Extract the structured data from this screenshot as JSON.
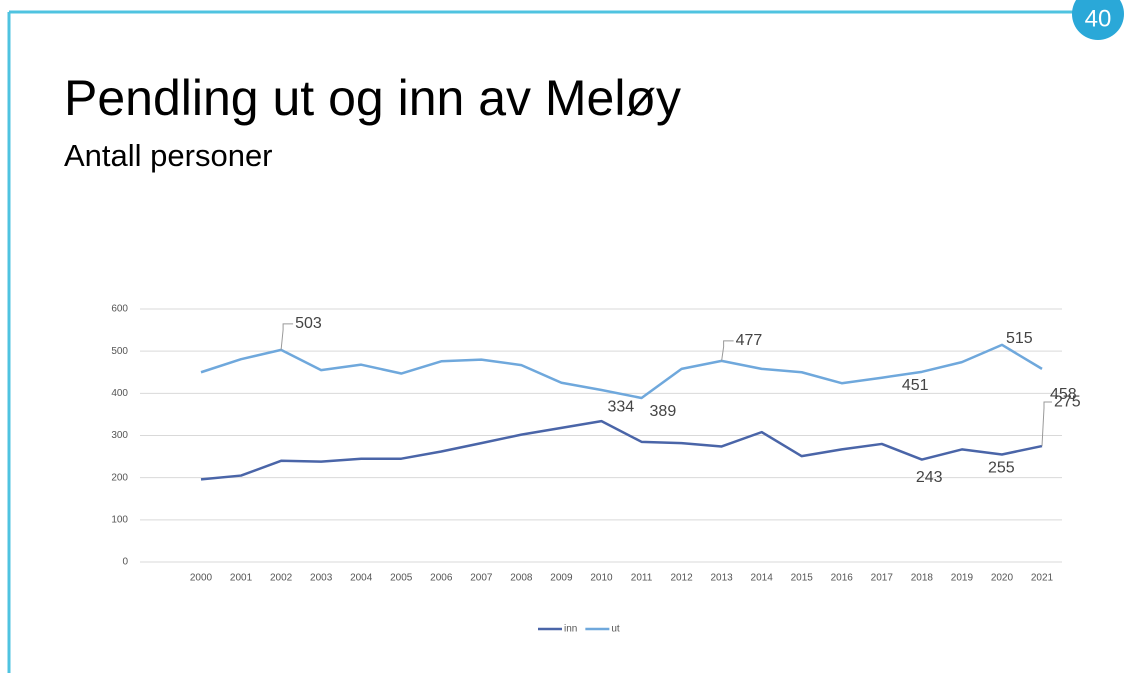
{
  "page_number": 40,
  "chart_data": {
    "type": "line",
    "title": "Pendling ut og inn av Meløy",
    "subtitle": "Antall personer",
    "categories": [
      "2000",
      "2001",
      "2002",
      "2003",
      "2004",
      "2005",
      "2006",
      "2007",
      "2008",
      "2009",
      "2010",
      "2011",
      "2012",
      "2013",
      "2014",
      "2015",
      "2016",
      "2017",
      "2018",
      "2019",
      "2020",
      "2021"
    ],
    "series": [
      {
        "name": "inn",
        "color": "#4a65a8",
        "values": [
          196,
          205,
          240,
          238,
          245,
          245,
          262,
          282,
          302,
          318,
          334,
          285,
          282,
          274,
          308,
          251,
          267,
          280,
          243,
          267,
          255,
          275
        ],
        "labeled": [
          10,
          18,
          20,
          21
        ]
      },
      {
        "name": "ut",
        "color": "#6fa8dc",
        "values": [
          450,
          481,
          503,
          455,
          468,
          447,
          476,
          480,
          467,
          425,
          408,
          389,
          458,
          477,
          458,
          450,
          424,
          437,
          451,
          474,
          515,
          458
        ],
        "labeled": [
          2,
          11,
          13,
          18,
          20,
          21
        ]
      }
    ],
    "ylim": [
      0,
      600
    ],
    "yticks": [
      0,
      100,
      200,
      300,
      400,
      500,
      600
    ],
    "grid": true,
    "legend": "bottom"
  }
}
